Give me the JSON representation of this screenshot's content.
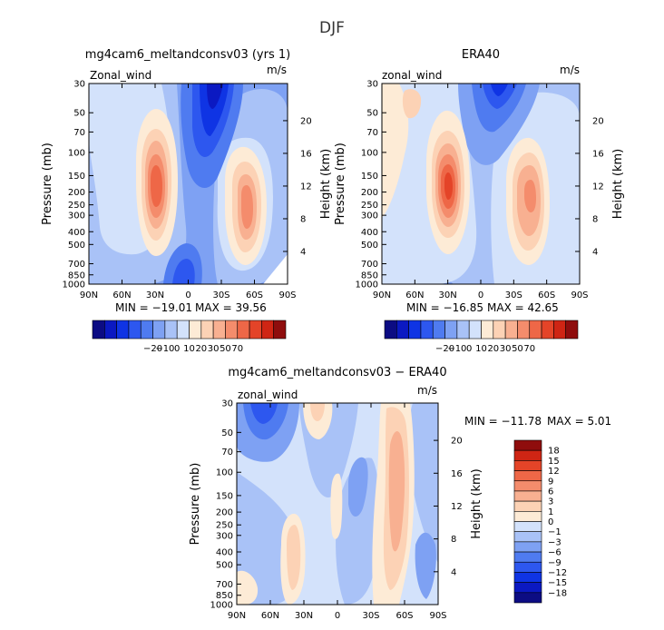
{
  "figure": {
    "title": "DJF"
  },
  "colors": {
    "neg": [
      "#0c0c83",
      "#0b19c2",
      "#0f34e4",
      "#2d57ef",
      "#4f7bf0",
      "#7ea1f3",
      "#a9c2f7",
      "#d3e2fb"
    ],
    "pos": [
      "#fdebd6",
      "#fcd2b5",
      "#f8b091",
      "#f48c6c",
      "#ee6747",
      "#e44428",
      "#cf2514",
      "#8f0d0d"
    ],
    "land": "#cfcfcf"
  },
  "chart_data": [
    {
      "id": "model",
      "type": "contour",
      "title": "mg4cam6_meltandconsv03 (yrs 1)",
      "left_label": "Zonal_wind",
      "right_label": "m/s",
      "ylabel": "Pressure (mb)",
      "ylabel_right": "Height (km)",
      "x_ticks": [
        "90N",
        "60N",
        "30N",
        "0",
        "30S",
        "60S",
        "90S"
      ],
      "y_ticks": [
        "30",
        "50",
        "70",
        "100",
        "150",
        "200",
        "250",
        "300",
        "400",
        "500",
        "700",
        "850",
        "1000"
      ],
      "height_ticks": [
        "20",
        "16",
        "12",
        "8",
        "4"
      ],
      "min_label": "MIN = −19.01",
      "max_label": "MAX =   39.56",
      "levels": [
        "−20",
        "−10",
        "0",
        "10",
        "20",
        "30",
        "50",
        "70"
      ],
      "features": [
        {
          "lat": 28,
          "p": 210,
          "value": 39.56
        },
        {
          "lat": -52,
          "p": 260,
          "value": 32
        },
        {
          "lat": -15,
          "p": 35,
          "value": -19.01
        },
        {
          "lat": 0,
          "p": 800,
          "value": -10
        },
        {
          "lat": 65,
          "p": 60,
          "value": 2
        }
      ]
    },
    {
      "id": "obs",
      "type": "contour",
      "title": "ERA40",
      "left_label": "zonal_wind",
      "right_label": "m/s",
      "ylabel": "Pressure (mb)",
      "ylabel_right": "Height (km)",
      "x_ticks": [
        "90N",
        "60N",
        "30N",
        "0",
        "30S",
        "60S",
        "90S"
      ],
      "y_ticks": [
        "30",
        "50",
        "70",
        "100",
        "150",
        "200",
        "250",
        "300",
        "400",
        "500",
        "700",
        "850",
        "1000"
      ],
      "height_ticks": [
        "20",
        "16",
        "12",
        "8",
        "4"
      ],
      "min_label": "MIN = −16.85",
      "max_label": "MAX =   42.65",
      "levels": [
        "−20",
        "−10",
        "0",
        "10",
        "20",
        "30",
        "50",
        "70"
      ],
      "features": [
        {
          "lat": 30,
          "p": 200,
          "value": 42.65
        },
        {
          "lat": -47,
          "p": 210,
          "value": 34
        },
        {
          "lat": -10,
          "p": 35,
          "value": -16.85
        },
        {
          "lat": 55,
          "p": 70,
          "value": 15
        }
      ]
    },
    {
      "id": "diff",
      "type": "contour",
      "title": "mg4cam6_meltandconsv03 − ERA40",
      "left_label": "zonal_wind",
      "right_label": "m/s",
      "ylabel": "Pressure (mb)",
      "ylabel_right": "Height (km)",
      "x_ticks": [
        "90N",
        "60N",
        "30N",
        "0",
        "30S",
        "60S",
        "90S"
      ],
      "y_ticks": [
        "30",
        "50",
        "70",
        "100",
        "150",
        "200",
        "250",
        "300",
        "400",
        "500",
        "700",
        "850",
        "1000"
      ],
      "height_ticks": [
        "20",
        "16",
        "12",
        "8",
        "4"
      ],
      "min_label": "MIN = −11.78",
      "max_label": "MAX =    5.01",
      "levels": [
        "18",
        "15",
        "12",
        "9",
        "6",
        "3",
        "1",
        "0",
        "−1",
        "−3",
        "−6",
        "−9",
        "−12",
        "−15",
        "−18"
      ],
      "features": [
        {
          "lat": -58,
          "p": 150,
          "value": 5.01
        },
        {
          "lat": 70,
          "p": 40,
          "value": -11.78
        },
        {
          "lat": -25,
          "p": 150,
          "value": -6
        }
      ]
    }
  ]
}
